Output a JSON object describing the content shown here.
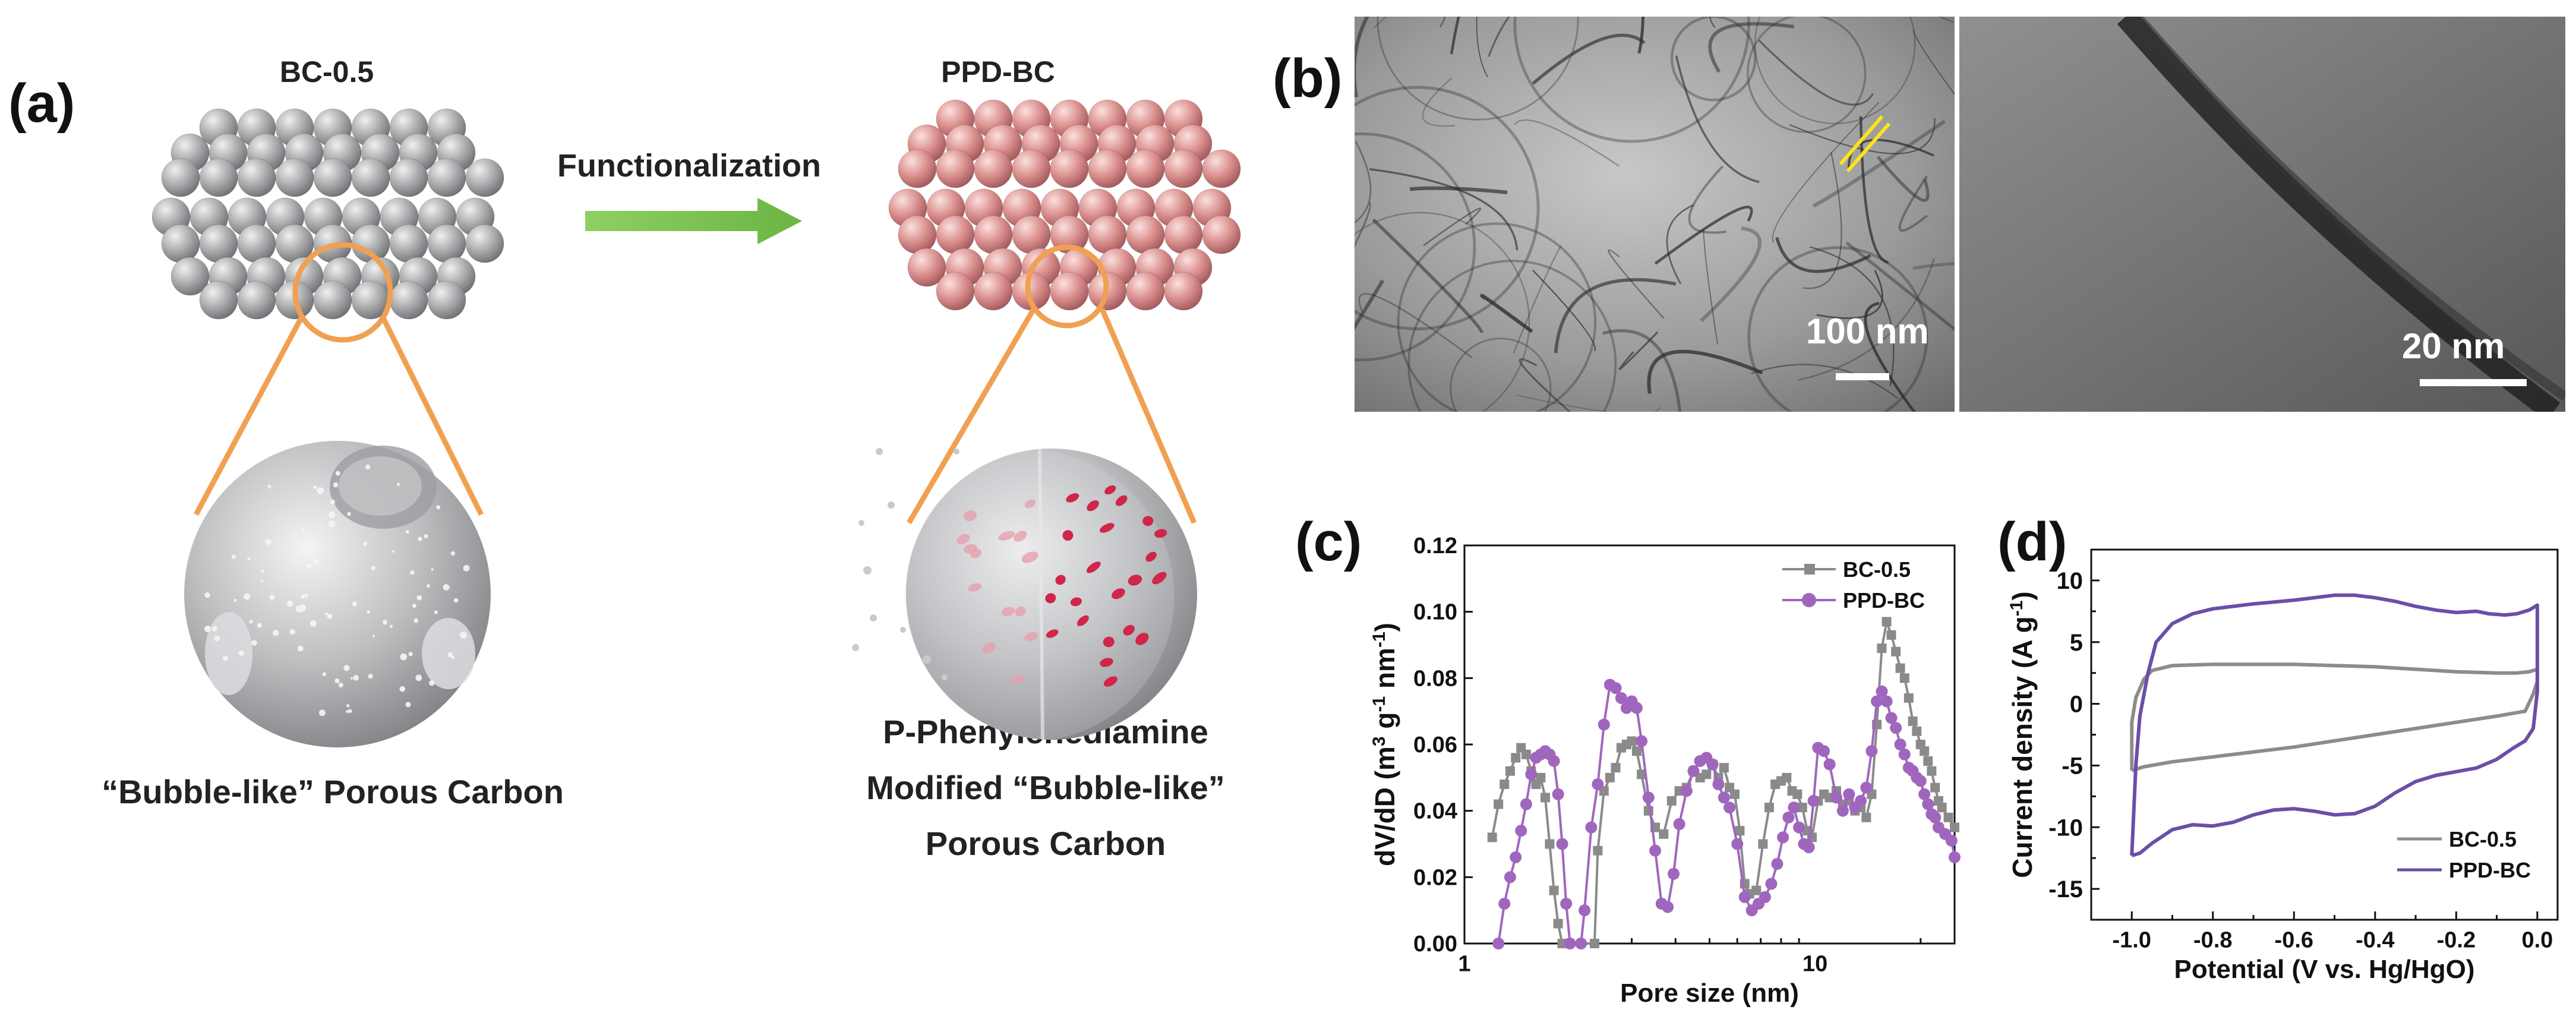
{
  "panel_a": {
    "letter": "(a)",
    "left_title": "BC-0.5",
    "right_title": "PPD-BC",
    "arrow_label": "Functionalization",
    "left_caption": "“Bubble-like” Porous Carbon",
    "right_caption_lines": [
      "P-Phenylenediamine",
      "Modified “Bubble-like”",
      "Porous Carbon"
    ],
    "colors": {
      "gray_sphere": "#a9abad",
      "pink_sphere": "#d9908f",
      "orange": "#f0a052",
      "arrow": "#7cc150",
      "pores": "#d0264a"
    }
  },
  "panel_b": {
    "letter": "(b)",
    "scalebar_left": "100 nm",
    "scalebar_right": "20 nm"
  },
  "panel_c": {
    "letter": "(c)"
  },
  "panel_d": {
    "letter": "(d)"
  },
  "chart_data": [
    {
      "panel": "c",
      "type": "line",
      "xlabel": "Pore size (nm)",
      "ylabel": "dV/dD (m3 g-1 nm-1)",
      "x_scale": "log",
      "xlim": [
        1,
        25
      ],
      "ylim": [
        0,
        0.12
      ],
      "yticks": [
        "0.00",
        "0.02",
        "0.04",
        "0.06",
        "0.08",
        "0.10",
        "0.12"
      ],
      "xtick_labels": [
        "1",
        "10"
      ],
      "legend_position": "top-right",
      "series": [
        {
          "name": "BC-0.5",
          "color": "#8a8a8a",
          "marker": "square",
          "points": [
            [
              1.2,
              0.032
            ],
            [
              1.25,
              0.042
            ],
            [
              1.3,
              0.048
            ],
            [
              1.35,
              0.052
            ],
            [
              1.4,
              0.056
            ],
            [
              1.45,
              0.059
            ],
            [
              1.5,
              0.057
            ],
            [
              1.55,
              0.052
            ],
            [
              1.6,
              0.048
            ],
            [
              1.65,
              0.05
            ],
            [
              1.7,
              0.044
            ],
            [
              1.75,
              0.03
            ],
            [
              1.8,
              0.016
            ],
            [
              1.85,
              0.006
            ],
            [
              1.9,
              0.0
            ],
            [
              2.35,
              0.0
            ],
            [
              2.4,
              0.028
            ],
            [
              2.5,
              0.046
            ],
            [
              2.6,
              0.05
            ],
            [
              2.7,
              0.053
            ],
            [
              2.8,
              0.059
            ],
            [
              2.9,
              0.06
            ],
            [
              3.0,
              0.061
            ],
            [
              3.1,
              0.058
            ],
            [
              3.2,
              0.051
            ],
            [
              3.35,
              0.04
            ],
            [
              3.5,
              0.035
            ],
            [
              3.7,
              0.033
            ],
            [
              3.9,
              0.043
            ],
            [
              4.1,
              0.046
            ],
            [
              4.3,
              0.047
            ],
            [
              4.5,
              0.052
            ],
            [
              4.7,
              0.05
            ],
            [
              4.9,
              0.051
            ],
            [
              5.1,
              0.054
            ],
            [
              5.3,
              0.05
            ],
            [
              5.5,
              0.053
            ],
            [
              5.7,
              0.047
            ],
            [
              5.9,
              0.045
            ],
            [
              6.1,
              0.034
            ],
            [
              6.3,
              0.018
            ],
            [
              6.5,
              0.015
            ],
            [
              6.8,
              0.016
            ],
            [
              7.1,
              0.03
            ],
            [
              7.4,
              0.041
            ],
            [
              7.7,
              0.048
            ],
            [
              8.0,
              0.049
            ],
            [
              8.3,
              0.05
            ],
            [
              8.6,
              0.046
            ],
            [
              8.9,
              0.045
            ],
            [
              9.2,
              0.041
            ],
            [
              9.5,
              0.034
            ],
            [
              9.8,
              0.032
            ],
            [
              10.2,
              0.043
            ],
            [
              10.6,
              0.045
            ],
            [
              11.0,
              0.044
            ],
            [
              11.5,
              0.046
            ],
            [
              12.0,
              0.042
            ],
            [
              12.5,
              0.043
            ],
            [
              13.0,
              0.04
            ],
            [
              13.5,
              0.041
            ],
            [
              14.0,
              0.038
            ],
            [
              14.5,
              0.045
            ],
            [
              15.0,
              0.066
            ],
            [
              15.5,
              0.089
            ],
            [
              16.0,
              0.097
            ],
            [
              16.5,
              0.093
            ],
            [
              17.0,
              0.088
            ],
            [
              17.5,
              0.083
            ],
            [
              18.0,
              0.08
            ],
            [
              18.5,
              0.074
            ],
            [
              19.0,
              0.067
            ],
            [
              19.5,
              0.064
            ],
            [
              20.0,
              0.06
            ],
            [
              20.5,
              0.058
            ],
            [
              21.0,
              0.055
            ],
            [
              21.5,
              0.052
            ],
            [
              22.0,
              0.047
            ],
            [
              22.5,
              0.043
            ],
            [
              23.0,
              0.041
            ],
            [
              24.0,
              0.038
            ],
            [
              25.0,
              0.035
            ]
          ]
        },
        {
          "name": "PPD-BC",
          "color": "#a066be",
          "marker": "circle",
          "points": [
            [
              1.25,
              0.0
            ],
            [
              1.3,
              0.012
            ],
            [
              1.35,
              0.02
            ],
            [
              1.4,
              0.026
            ],
            [
              1.45,
              0.034
            ],
            [
              1.5,
              0.042
            ],
            [
              1.55,
              0.051
            ],
            [
              1.6,
              0.056
            ],
            [
              1.65,
              0.057
            ],
            [
              1.7,
              0.058
            ],
            [
              1.75,
              0.057
            ],
            [
              1.8,
              0.055
            ],
            [
              1.85,
              0.045
            ],
            [
              1.9,
              0.03
            ],
            [
              1.95,
              0.012
            ],
            [
              2.0,
              0.0
            ],
            [
              2.15,
              0.0
            ],
            [
              2.2,
              0.01
            ],
            [
              2.3,
              0.035
            ],
            [
              2.4,
              0.048
            ],
            [
              2.5,
              0.066
            ],
            [
              2.6,
              0.078
            ],
            [
              2.7,
              0.077
            ],
            [
              2.8,
              0.074
            ],
            [
              2.9,
              0.071
            ],
            [
              3.0,
              0.073
            ],
            [
              3.1,
              0.071
            ],
            [
              3.2,
              0.061
            ],
            [
              3.35,
              0.044
            ],
            [
              3.5,
              0.028
            ],
            [
              3.65,
              0.012
            ],
            [
              3.8,
              0.011
            ],
            [
              3.95,
              0.021
            ],
            [
              4.1,
              0.036
            ],
            [
              4.3,
              0.046
            ],
            [
              4.5,
              0.052
            ],
            [
              4.7,
              0.055
            ],
            [
              4.9,
              0.056
            ],
            [
              5.1,
              0.054
            ],
            [
              5.3,
              0.048
            ],
            [
              5.5,
              0.044
            ],
            [
              5.7,
              0.041
            ],
            [
              6.0,
              0.03
            ],
            [
              6.3,
              0.014
            ],
            [
              6.6,
              0.01
            ],
            [
              6.9,
              0.012
            ],
            [
              7.2,
              0.014
            ],
            [
              7.5,
              0.018
            ],
            [
              7.8,
              0.024
            ],
            [
              8.1,
              0.032
            ],
            [
              8.4,
              0.038
            ],
            [
              8.7,
              0.041
            ],
            [
              9.0,
              0.035
            ],
            [
              9.3,
              0.03
            ],
            [
              9.6,
              0.029
            ],
            [
              9.9,
              0.043
            ],
            [
              10.2,
              0.059
            ],
            [
              10.6,
              0.058
            ],
            [
              11.0,
              0.054
            ],
            [
              11.5,
              0.044
            ],
            [
              12.0,
              0.04
            ],
            [
              12.5,
              0.045
            ],
            [
              13.0,
              0.041
            ],
            [
              13.5,
              0.043
            ],
            [
              14.0,
              0.047
            ],
            [
              14.5,
              0.058
            ],
            [
              15.0,
              0.073
            ],
            [
              15.5,
              0.076
            ],
            [
              16.0,
              0.073
            ],
            [
              16.5,
              0.068
            ],
            [
              17.0,
              0.065
            ],
            [
              17.5,
              0.06
            ],
            [
              18.0,
              0.057
            ],
            [
              18.5,
              0.053
            ],
            [
              19.0,
              0.052
            ],
            [
              19.5,
              0.05
            ],
            [
              20.0,
              0.049
            ],
            [
              20.5,
              0.045
            ],
            [
              21.0,
              0.042
            ],
            [
              21.5,
              0.039
            ],
            [
              22.0,
              0.038
            ],
            [
              22.5,
              0.035
            ],
            [
              23.5,
              0.033
            ],
            [
              24.5,
              0.031
            ],
            [
              25.0,
              0.026
            ]
          ]
        }
      ]
    },
    {
      "panel": "d",
      "type": "line",
      "xlabel": "Potential (V vs. Hg/HgO)",
      "ylabel": "Current density (A g-1)",
      "xlim": [
        -1.1,
        0.05
      ],
      "ylim": [
        -17.5,
        12.5
      ],
      "xticks": [
        "-1.0",
        "-0.8",
        "-0.6",
        "-0.4",
        "-0.2",
        "0.0"
      ],
      "yticks": [
        "10",
        "5",
        "0",
        "-5",
        "-10",
        "-15"
      ],
      "legend_position": "bottom-right",
      "series": [
        {
          "name": "BC-0.5",
          "color": "#8c8c8c",
          "points": [
            [
              -1.0,
              -5.4
            ],
            [
              -1.0,
              -1.5
            ],
            [
              -0.99,
              0.5
            ],
            [
              -0.97,
              2.0
            ],
            [
              -0.95,
              2.7
            ],
            [
              -0.9,
              3.1
            ],
            [
              -0.8,
              3.2
            ],
            [
              -0.7,
              3.2
            ],
            [
              -0.6,
              3.2
            ],
            [
              -0.5,
              3.1
            ],
            [
              -0.4,
              3.0
            ],
            [
              -0.3,
              2.8
            ],
            [
              -0.2,
              2.6
            ],
            [
              -0.1,
              2.5
            ],
            [
              -0.05,
              2.5
            ],
            [
              -0.02,
              2.6
            ],
            [
              0.0,
              2.8
            ],
            [
              0.0,
              1.8
            ],
            [
              -0.01,
              0.8
            ],
            [
              -0.03,
              -0.6
            ],
            [
              -0.1,
              -1.0
            ],
            [
              -0.2,
              -1.5
            ],
            [
              -0.3,
              -2.0
            ],
            [
              -0.4,
              -2.5
            ],
            [
              -0.5,
              -3.0
            ],
            [
              -0.6,
              -3.5
            ],
            [
              -0.7,
              -3.9
            ],
            [
              -0.8,
              -4.3
            ],
            [
              -0.9,
              -4.7
            ],
            [
              -0.97,
              -5.1
            ],
            [
              -1.0,
              -5.4
            ]
          ]
        },
        {
          "name": "PPD-BC",
          "color": "#6b4ea8",
          "points": [
            [
              -1.0,
              -12.3
            ],
            [
              -0.99,
              -5.0
            ],
            [
              -0.98,
              -1.0
            ],
            [
              -0.96,
              2.5
            ],
            [
              -0.94,
              5.0
            ],
            [
              -0.9,
              6.5
            ],
            [
              -0.85,
              7.3
            ],
            [
              -0.8,
              7.7
            ],
            [
              -0.75,
              7.9
            ],
            [
              -0.7,
              8.1
            ],
            [
              -0.6,
              8.4
            ],
            [
              -0.55,
              8.6
            ],
            [
              -0.5,
              8.8
            ],
            [
              -0.45,
              8.8
            ],
            [
              -0.4,
              8.6
            ],
            [
              -0.35,
              8.3
            ],
            [
              -0.3,
              7.9
            ],
            [
              -0.25,
              7.6
            ],
            [
              -0.2,
              7.4
            ],
            [
              -0.15,
              7.5
            ],
            [
              -0.12,
              7.3
            ],
            [
              -0.08,
              7.2
            ],
            [
              -0.05,
              7.3
            ],
            [
              -0.02,
              7.6
            ],
            [
              0.0,
              8.0
            ],
            [
              0.0,
              1.0
            ],
            [
              -0.01,
              -2.0
            ],
            [
              -0.03,
              -3.0
            ],
            [
              -0.06,
              -3.6
            ],
            [
              -0.1,
              -4.5
            ],
            [
              -0.15,
              -5.2
            ],
            [
              -0.2,
              -5.5
            ],
            [
              -0.25,
              -5.8
            ],
            [
              -0.3,
              -6.3
            ],
            [
              -0.35,
              -7.2
            ],
            [
              -0.4,
              -8.3
            ],
            [
              -0.45,
              -8.9
            ],
            [
              -0.5,
              -9.0
            ],
            [
              -0.55,
              -8.7
            ],
            [
              -0.6,
              -8.5
            ],
            [
              -0.65,
              -8.6
            ],
            [
              -0.7,
              -9.0
            ],
            [
              -0.75,
              -9.6
            ],
            [
              -0.8,
              -9.9
            ],
            [
              -0.85,
              -9.8
            ],
            [
              -0.9,
              -10.2
            ],
            [
              -0.95,
              -11.3
            ],
            [
              -0.98,
              -12.1
            ],
            [
              -1.0,
              -12.3
            ]
          ]
        }
      ]
    }
  ]
}
